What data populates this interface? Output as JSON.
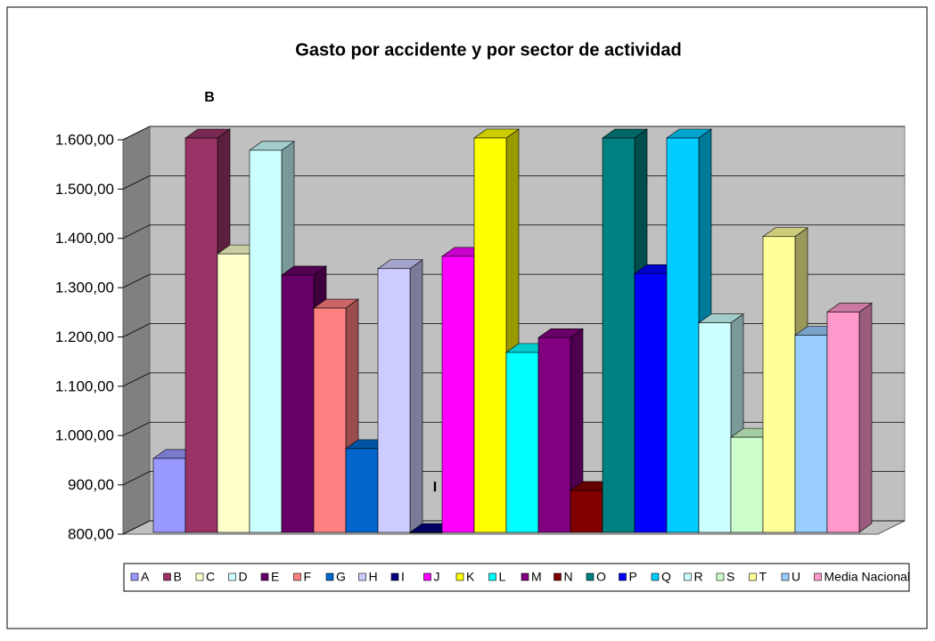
{
  "chart_data": {
    "type": "bar3d",
    "title": "Gasto por accidente y por sector de actividad",
    "annotations": [
      "B",
      "I"
    ],
    "categories": [
      "A",
      "B",
      "C",
      "D",
      "E",
      "F",
      "G",
      "H",
      "I",
      "J",
      "K",
      "L",
      "M",
      "N",
      "O",
      "P",
      "Q",
      "R",
      "S",
      "T",
      "U",
      "Media Nacional"
    ],
    "values": [
      950,
      1650,
      1365,
      1575,
      1322,
      1255,
      970,
      1335,
      780,
      1360,
      1610,
      1165,
      1195,
      885,
      1610,
      1325,
      1610,
      1225,
      993,
      1400,
      1200,
      1247
    ],
    "colors": [
      "#9999ff",
      "#993366",
      "#ffffcc",
      "#ccffff",
      "#660066",
      "#ff8080",
      "#0066cc",
      "#ccccff",
      "#000080",
      "#ff00ff",
      "#ffff00",
      "#00ffff",
      "#800080",
      "#800000",
      "#008080",
      "#0000ff",
      "#00ccff",
      "#ccffff",
      "#ccffcc",
      "#ffff99",
      "#99ccff",
      "#ff99cc"
    ],
    "ylim": [
      800,
      1600
    ],
    "yticks": [
      {
        "value": 800,
        "label": "800,00"
      },
      {
        "value": 900,
        "label": "900,00"
      },
      {
        "value": 1000,
        "label": "1.000,00"
      },
      {
        "value": 1100,
        "label": "1.100,00"
      },
      {
        "value": 1200,
        "label": "1.200,00"
      },
      {
        "value": 1300,
        "label": "1.300,00"
      },
      {
        "value": 1400,
        "label": "1.400,00"
      },
      {
        "value": 1500,
        "label": "1.500,00"
      },
      {
        "value": 1600,
        "label": "1.600,00"
      }
    ],
    "grid": true
  }
}
